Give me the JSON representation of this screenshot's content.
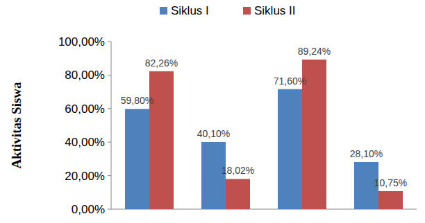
{
  "chart_data": {
    "type": "bar",
    "y_label": "Aktivitas Siswa",
    "categories": [
      null,
      null,
      null,
      null
    ],
    "series": [
      {
        "name": "Siklus I",
        "color": "#4f81bd",
        "values": [
          59.8,
          40.1,
          71.6,
          28.1
        ],
        "value_labels": [
          "59,80%",
          "40,10%",
          "71,60%",
          "28,10%"
        ]
      },
      {
        "name": "Siklus II",
        "color": "#c0504d",
        "values": [
          82.26,
          18.02,
          89.24,
          10.75
        ],
        "value_labels": [
          "82,26%",
          "18,02%",
          "89,24%",
          "10,75%"
        ]
      }
    ],
    "ylim": [
      0,
      100
    ],
    "yticks": [
      {
        "value": 0,
        "label": "0,00%"
      },
      {
        "value": 20,
        "label": "20,00%"
      },
      {
        "value": 40,
        "label": "40,00%"
      },
      {
        "value": 60,
        "label": "60,00%"
      },
      {
        "value": 80,
        "label": "80,00%"
      },
      {
        "value": 100,
        "label": "100,00%"
      }
    ],
    "grid": false,
    "legend": "top",
    "data_labels": true
  }
}
